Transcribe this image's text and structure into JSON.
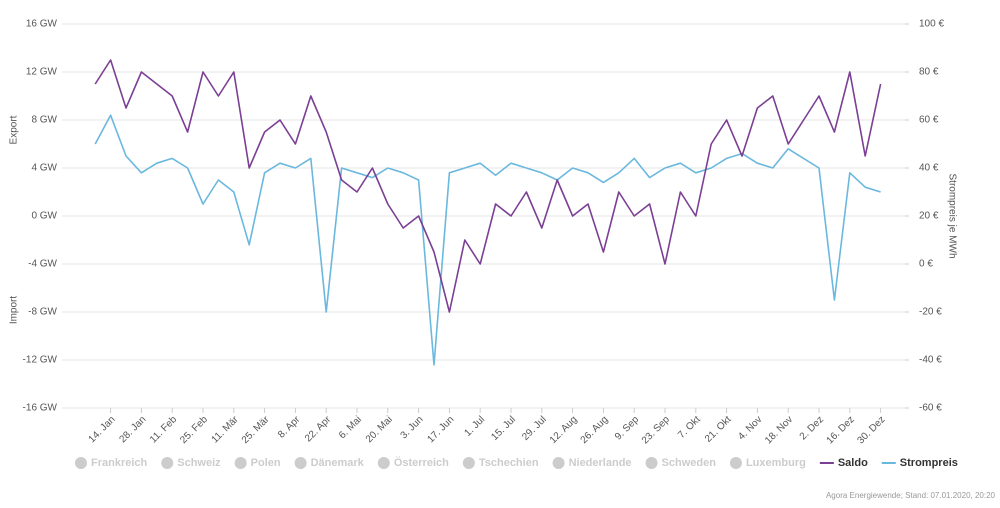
{
  "chart_data": {
    "type": "line",
    "y_title_top": "Export",
    "y_title_bottom": "Import",
    "y2_title": "Strompreis je MWh",
    "categories": [
      null,
      "14. Jan",
      null,
      "28. Jan",
      null,
      "11. Feb",
      null,
      "25. Feb",
      null,
      "11. Mär",
      null,
      "25. Mär",
      null,
      "8. Apr",
      null,
      "22. Apr",
      null,
      "6. Mai",
      null,
      "20. Mai",
      null,
      "3. Jun",
      null,
      "17. Jun",
      null,
      "1. Jul",
      null,
      "15. Jul",
      null,
      "29. Jul",
      null,
      "12. Aug",
      null,
      "26. Aug",
      null,
      "9. Sep",
      null,
      "23. Sep",
      null,
      "7. Okt",
      null,
      "21. Okt",
      null,
      "4. Nov",
      null,
      "18. Nov",
      null,
      "2. Dez",
      null,
      "16. Dez",
      null,
      "30. Dez"
    ],
    "series": [
      {
        "name": "Saldo",
        "color": "#7b3f94",
        "values": [
          11,
          13,
          9,
          12,
          11,
          10,
          7,
          12,
          10,
          12,
          4,
          7,
          8,
          6,
          10,
          7,
          3,
          2,
          4,
          1,
          -1,
          0,
          -3,
          -8,
          -2,
          -4,
          1,
          0,
          2,
          -1,
          3,
          0,
          1,
          -3,
          2,
          0,
          1,
          -4,
          2,
          0,
          6,
          8,
          5,
          9,
          10,
          6,
          8,
          10,
          7,
          12,
          5,
          11
        ]
      },
      {
        "name": "Strompreis",
        "color": "#6bb8de",
        "axis": "y2",
        "values": [
          50,
          62,
          45,
          38,
          42,
          44,
          40,
          25,
          35,
          30,
          8,
          38,
          42,
          40,
          44,
          -20,
          40,
          38,
          36,
          40,
          38,
          35,
          -42,
          38,
          40,
          42,
          37,
          42,
          40,
          38,
          35,
          40,
          38,
          34,
          38,
          44,
          36,
          40,
          42,
          38,
          40,
          44,
          46,
          42,
          40,
          48,
          44,
          40,
          -15,
          38,
          32,
          30
        ]
      }
    ],
    "inactive_legend": [
      "Frankreich",
      "Schweiz",
      "Polen",
      "Dänemark",
      "Österreich",
      "Tschechien",
      "Niederlande",
      "Schweden",
      "Luxemburg"
    ],
    "inactive_color": "#cccccc",
    "ylim": [
      -16,
      16
    ],
    "yticks": [
      {
        "value": -16,
        "label": "-16 GW"
      },
      {
        "value": -12,
        "label": "-12 GW"
      },
      {
        "value": -8,
        "label": "-8 GW"
      },
      {
        "value": -4,
        "label": "-4 GW"
      },
      {
        "value": 0,
        "label": "0 GW"
      },
      {
        "value": 4,
        "label": "4 GW"
      },
      {
        "value": 8,
        "label": "8 GW"
      },
      {
        "value": 12,
        "label": "12 GW"
      },
      {
        "value": 16,
        "label": "16 GW"
      }
    ],
    "y2lim": [
      -60,
      100
    ],
    "y2ticks": [
      {
        "value": -60,
        "label": "-60 €"
      },
      {
        "value": -40,
        "label": "-40 €"
      },
      {
        "value": -20,
        "label": "-20 €"
      },
      {
        "value": 0,
        "label": "0 €"
      },
      {
        "value": 20,
        "label": "20 €"
      },
      {
        "value": 40,
        "label": "40 €"
      },
      {
        "value": 60,
        "label": "60 €"
      },
      {
        "value": 80,
        "label": "80 €"
      },
      {
        "value": 100,
        "label": "100 €"
      }
    ],
    "grid": true,
    "credit": "Agora Energiewende; Stand: 07.01.2020, 20:20"
  }
}
